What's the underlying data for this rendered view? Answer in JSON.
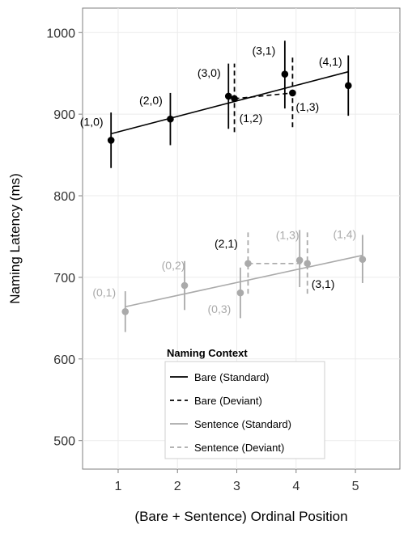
{
  "chart_data": {
    "type": "scatter",
    "xlabel": "(Bare + Sentence) Ordinal Position",
    "ylabel": "Naming Latency (ms)",
    "xlim": [
      0.4,
      5.75
    ],
    "ylim": [
      465,
      1030
    ],
    "xticks": [
      1,
      2,
      3,
      4,
      5
    ],
    "xtick_labels": [
      "1",
      "2",
      "3",
      "4",
      "5"
    ],
    "yticks": [
      500,
      600,
      700,
      800,
      900,
      1000
    ],
    "ytick_labels": [
      "500",
      "600",
      "700",
      "800",
      "900",
      "1000"
    ],
    "grid": true,
    "legend": {
      "title": "Naming Context",
      "placement": "bottom-center",
      "entries": [
        {
          "label": "Bare (Standard)",
          "color": "#000000",
          "dash": "solid"
        },
        {
          "label": "Bare (Deviant)",
          "color": "#000000",
          "dash": "dashed"
        },
        {
          "label": "Sentence (Standard)",
          "color": "#aaaaaa",
          "dash": "solid"
        },
        {
          "label": "Sentence (Deviant)",
          "color": "#aaaaaa",
          "dash": "dashed"
        }
      ]
    },
    "series": [
      {
        "name": "Bare (Standard)",
        "color": "#000000",
        "points": [
          {
            "label": "(1,0)",
            "x": 0.88,
            "y": 868,
            "lo": 834,
            "hi": 902
          },
          {
            "label": "(2,0)",
            "x": 1.88,
            "y": 894,
            "lo": 862,
            "hi": 926
          },
          {
            "label": "(3,0)",
            "x": 2.86,
            "y": 922,
            "lo": 882,
            "hi": 962
          },
          {
            "label": "(3,1)",
            "x": 3.81,
            "y": 949,
            "lo": 907,
            "hi": 990
          },
          {
            "label": "(4,1)",
            "x": 4.88,
            "y": 935,
            "lo": 898,
            "hi": 972
          }
        ],
        "fit": {
          "x": [
            0.88,
            4.88
          ],
          "y": [
            876,
            952
          ]
        }
      },
      {
        "name": "Bare (Deviant)",
        "color": "#000000",
        "points": [
          {
            "label": "(1,2)",
            "x": 2.96,
            "y": 919,
            "lo": 878,
            "hi": 962
          },
          {
            "label": "(1,3)",
            "x": 3.94,
            "y": 926,
            "lo": 884,
            "hi": 970
          }
        ],
        "fit": {
          "x": [
            2.96,
            3.94
          ],
          "y": [
            919,
            926
          ]
        }
      },
      {
        "name": "Sentence (Standard)",
        "color": "#aaaaaa",
        "points": [
          {
            "label": "(0,1)",
            "x": 1.12,
            "y": 658,
            "lo": 633,
            "hi": 683
          },
          {
            "label": "(0,2)",
            "x": 2.12,
            "y": 690,
            "lo": 660,
            "hi": 720
          },
          {
            "label": "(0,3)",
            "x": 3.06,
            "y": 681,
            "lo": 650,
            "hi": 712
          },
          {
            "label": "(1,3)",
            "x": 4.06,
            "y": 721,
            "lo": 688,
            "hi": 758
          },
          {
            "label": "(1,4)",
            "x": 5.12,
            "y": 722,
            "lo": 693,
            "hi": 752
          }
        ],
        "fit": {
          "x": [
            1.12,
            5.12
          ],
          "y": [
            664,
            727
          ]
        }
      },
      {
        "name": "Sentence (Deviant)",
        "color": "#aaaaaa",
        "points": [
          {
            "label": "(2,1)",
            "x": 3.19,
            "y": 717,
            "lo": 680,
            "hi": 755
          },
          {
            "label": "(3,1)",
            "x": 4.19,
            "y": 717,
            "lo": 680,
            "hi": 755
          }
        ],
        "fit": {
          "x": [
            3.19,
            4.19
          ],
          "y": [
            717,
            717
          ]
        }
      }
    ]
  }
}
